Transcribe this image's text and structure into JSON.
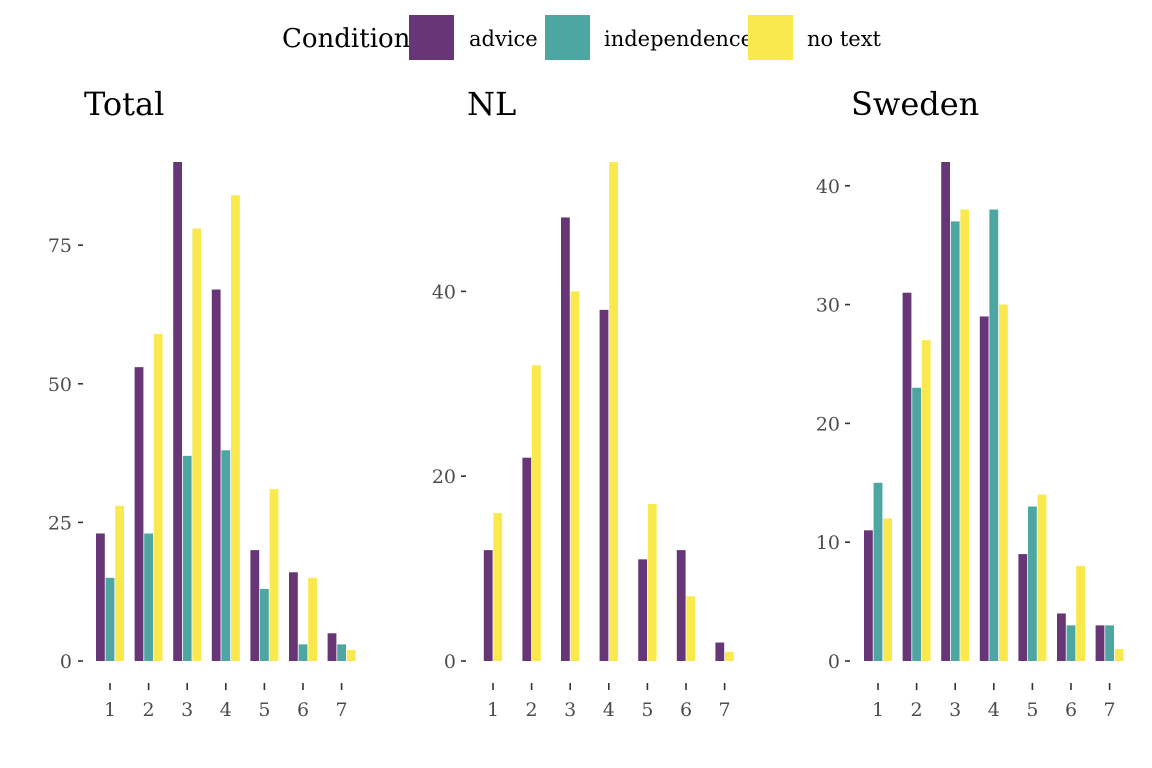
{
  "chart_data": {
    "type": "bar",
    "legend": {
      "title": "Condition",
      "position": "top",
      "entries": [
        {
          "name": "advice",
          "color": "#673677"
        },
        {
          "name": "independence",
          "color": "#4da6a1"
        },
        {
          "name": "no text",
          "color": "#f9e84e"
        }
      ]
    },
    "categories": [
      "1",
      "2",
      "3",
      "4",
      "5",
      "6",
      "7"
    ],
    "grid": false,
    "panels": [
      {
        "title": "Total",
        "ylim": [
          0,
          90
        ],
        "yticks": [
          0,
          25,
          50,
          75
        ],
        "series": [
          {
            "name": "advice",
            "values": [
              23,
              53,
              90,
              67,
              20,
              16,
              5
            ]
          },
          {
            "name": "independence",
            "values": [
              15,
              23,
              37,
              38,
              13,
              3,
              3
            ]
          },
          {
            "name": "no text",
            "values": [
              28,
              59,
              78,
              84,
              31,
              15,
              2
            ]
          }
        ]
      },
      {
        "title": "NL",
        "ylim": [
          0,
          54
        ],
        "yticks": [
          0,
          20,
          40
        ],
        "series": [
          {
            "name": "advice",
            "values": [
              12,
              22,
              48,
              38,
              11,
              12,
              2
            ]
          },
          {
            "name": "no text",
            "values": [
              16,
              32,
              40,
              54,
              17,
              7,
              1
            ]
          }
        ]
      },
      {
        "title": "Sweden",
        "ylim": [
          0,
          42
        ],
        "yticks": [
          0,
          10,
          20,
          30,
          40
        ],
        "series": [
          {
            "name": "advice",
            "values": [
              11,
              31,
              42,
              29,
              9,
              4,
              3
            ]
          },
          {
            "name": "independence",
            "values": [
              15,
              23,
              37,
              38,
              13,
              3,
              3
            ]
          },
          {
            "name": "no text",
            "values": [
              12,
              27,
              38,
              30,
              14,
              8,
              1
            ]
          }
        ]
      }
    ]
  }
}
